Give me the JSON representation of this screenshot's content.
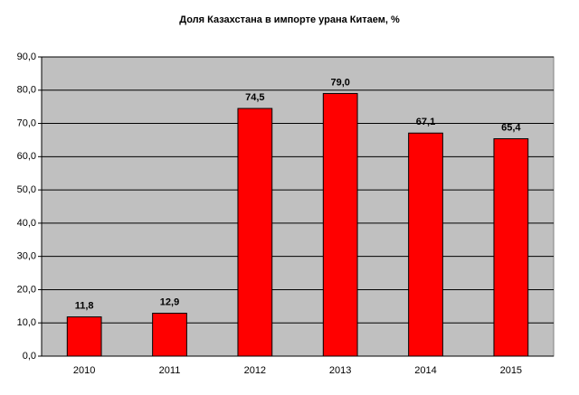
{
  "chart_data": {
    "type": "bar",
    "title": "Доля Казахстана в импорте урана Китаем, %",
    "categories": [
      "2010",
      "2011",
      "2012",
      "2013",
      "2014",
      "2015"
    ],
    "values": [
      11.8,
      12.9,
      74.5,
      79.0,
      67.1,
      65.4
    ],
    "value_labels": [
      "11,8",
      "12,9",
      "74,5",
      "79,0",
      "67,1",
      "65,4"
    ],
    "color": "#ff0000",
    "ylim": [
      0,
      90
    ],
    "yticks": [
      {
        "value": 0,
        "label": "0,0"
      },
      {
        "value": 10,
        "label": "10,0"
      },
      {
        "value": 20,
        "label": "20,0"
      },
      {
        "value": 30,
        "label": "30,0"
      },
      {
        "value": 40,
        "label": "40,0"
      },
      {
        "value": 50,
        "label": "50,0"
      },
      {
        "value": 60,
        "label": "60,0"
      },
      {
        "value": 70,
        "label": "70,0"
      },
      {
        "value": 80,
        "label": "80,0"
      },
      {
        "value": 90,
        "label": "90,0"
      }
    ],
    "grid": true
  }
}
